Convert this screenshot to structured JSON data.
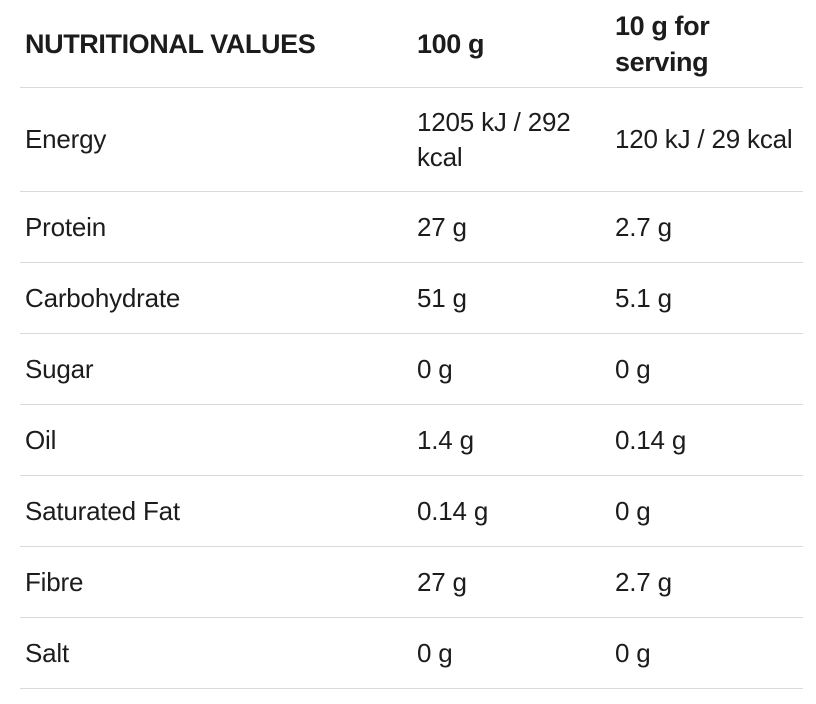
{
  "table": {
    "header": {
      "col1": "NUTRITIONAL VALUES",
      "col2": "100 g",
      "col3": "10 g for serving"
    },
    "rows": [
      {
        "label": "Energy",
        "per100g": "1205 kJ / 292 kcal",
        "perServing": "120 kJ / 29 kcal"
      },
      {
        "label": "Protein",
        "per100g": "27 g",
        "perServing": "2.7 g"
      },
      {
        "label": "Carbohydrate",
        "per100g": "51 g",
        "perServing": "5.1 g"
      },
      {
        "label": "Sugar",
        "per100g": "0 g",
        "perServing": "0 g"
      },
      {
        "label": "Oil",
        "per100g": "1.4 g",
        "perServing": "0.14 g"
      },
      {
        "label": "Saturated Fat",
        "per100g": "0.14 g",
        "perServing": "0 g"
      },
      {
        "label": "Fibre",
        "per100g": "27 g",
        "perServing": "2.7 g"
      },
      {
        "label": "Salt",
        "per100g": "0 g",
        "perServing": "0 g"
      }
    ],
    "colors": {
      "text": "#1c1c1c",
      "divider": "#dadada",
      "background": "#ffffff"
    }
  }
}
